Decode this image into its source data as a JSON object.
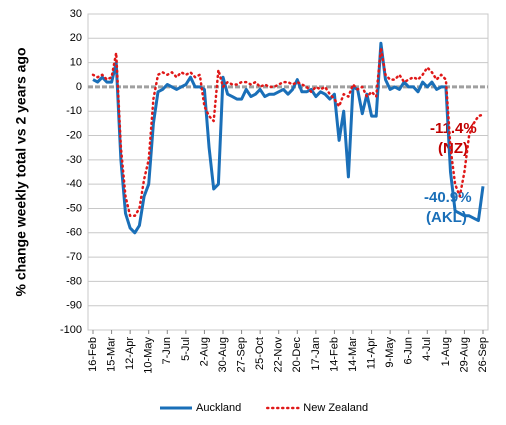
{
  "chart_data": {
    "type": "line",
    "y_label": "% change weekly total  vs 2 years ago",
    "categories": [
      "16-Feb",
      null,
      null,
      null,
      "15-Mar",
      null,
      null,
      null,
      "12-Apr",
      null,
      null,
      null,
      "10-May",
      null,
      null,
      null,
      "7-Jun",
      null,
      null,
      null,
      "5-Jul",
      null,
      null,
      null,
      "2-Aug",
      null,
      null,
      null,
      "30-Aug",
      null,
      null,
      null,
      "27-Sep",
      null,
      null,
      null,
      "25-Oct",
      null,
      null,
      null,
      "22-Nov",
      null,
      null,
      null,
      "20-Dec",
      null,
      null,
      null,
      "17-Jan",
      null,
      null,
      null,
      "14-Feb",
      null,
      null,
      null,
      "14-Mar",
      null,
      null,
      null,
      "11-Apr",
      null,
      null,
      null,
      "9-May",
      null,
      null,
      null,
      "6-Jun",
      null,
      null,
      null,
      "4-Jul",
      null,
      null,
      null,
      "1-Aug",
      null,
      null,
      null,
      "29-Aug",
      null,
      null,
      null,
      "26-Sep"
    ],
    "series": [
      {
        "name": "Auckland",
        "color": "#1a6fb8",
        "line_style": "solid",
        "values": [
          3,
          2,
          4,
          2,
          2,
          10,
          -30,
          -52,
          -58,
          -60,
          -57,
          -45,
          -40,
          -15,
          -2,
          -1,
          1,
          0,
          -1,
          0,
          1,
          4,
          0,
          0,
          -1,
          -25,
          -42,
          -40,
          4,
          -3,
          -4,
          -5,
          -5,
          -1,
          -4,
          -3,
          -1,
          -4,
          -3,
          -3,
          -2,
          -1,
          -3,
          -1,
          3,
          -2,
          -2,
          -1,
          -4,
          -2,
          -3,
          -5,
          -3,
          -22,
          -10,
          -37,
          0,
          -1,
          -11,
          -3,
          -12,
          -12,
          18,
          3,
          -1,
          0,
          -1,
          2,
          0,
          0,
          -2,
          2,
          0,
          2,
          -1,
          0,
          0,
          -35,
          -51,
          -52,
          -53,
          -53,
          -54,
          -55,
          -40.9
        ]
      },
      {
        "name": "New Zealand",
        "color": "#e01818",
        "line_style": "dotted",
        "values": [
          5,
          4,
          5,
          3,
          4,
          14,
          -25,
          -45,
          -53,
          -53,
          -50,
          -38,
          -30,
          -5,
          5,
          6,
          5,
          6,
          4,
          6,
          5,
          6,
          4,
          5,
          -8,
          -12,
          -14,
          7,
          0,
          2,
          1,
          1,
          2,
          2,
          1,
          2,
          0,
          1,
          0,
          0,
          1,
          2,
          2,
          1,
          2,
          1,
          0,
          -2,
          0,
          -1,
          0,
          -3,
          -5,
          -8,
          -3,
          -4,
          1,
          -1,
          0,
          -4,
          -2,
          -4,
          16,
          5,
          3,
          3,
          5,
          2,
          3,
          4,
          3,
          5,
          8,
          6,
          3,
          5,
          3,
          -25,
          -40,
          -45,
          -35,
          -20,
          -15,
          -12,
          -11.4
        ]
      }
    ],
    "annotations": [
      {
        "text": "-11.4%",
        "color": "#c00000"
      },
      {
        "text": "(NZ)",
        "color": "#c00000"
      },
      {
        "text": "-40.9%",
        "color": "#1a6fb8"
      },
      {
        "text": "(AKL)",
        "color": "#1a6fb8"
      }
    ],
    "ylim": [
      -100,
      30
    ],
    "yticks": [
      -100,
      -90,
      -80,
      -70,
      -60,
      -50,
      -40,
      -30,
      -20,
      -10,
      0,
      10,
      20,
      30
    ],
    "grid": true,
    "legend": "bottom"
  }
}
